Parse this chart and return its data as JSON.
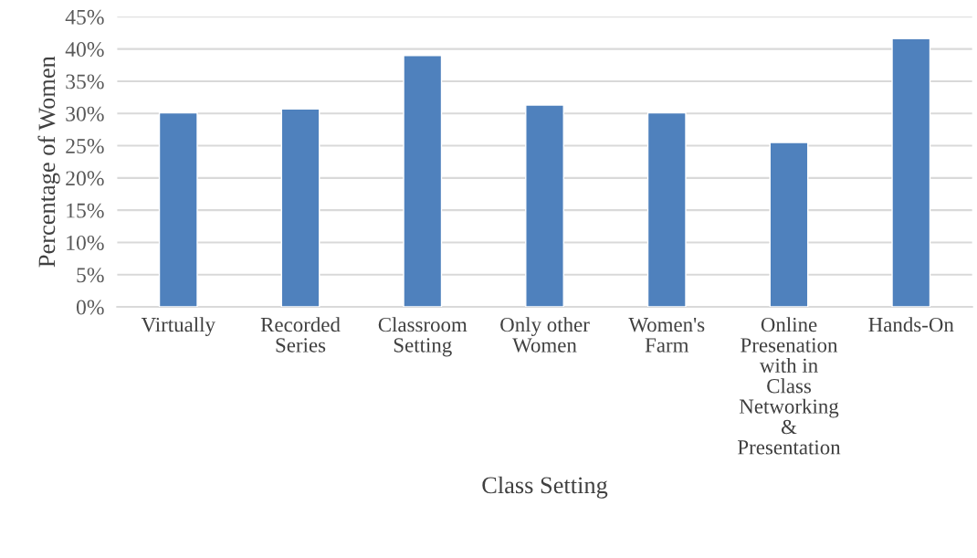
{
  "chart_data": {
    "type": "bar",
    "xlabel": "Class Setting",
    "ylabel": "Percentage of Women",
    "categories": [
      "Virtually",
      "Recorded Series",
      "Classroom Setting",
      "Only other Women",
      "Women's Farm",
      "Online Presenation with in Class Networking & Presentation",
      "Hands-On"
    ],
    "values": [
      30.1,
      30.7,
      39.0,
      31.3,
      30.1,
      25.5,
      41.6
    ],
    "color": "#4f81bd",
    "ylim": [
      0,
      45
    ],
    "yticks": [
      {
        "value": 0,
        "label": "0%"
      },
      {
        "value": 5,
        "label": "5%"
      },
      {
        "value": 10,
        "label": "10%"
      },
      {
        "value": 15,
        "label": "15%"
      },
      {
        "value": 20,
        "label": "20%"
      },
      {
        "value": 25,
        "label": "25%"
      },
      {
        "value": 30,
        "label": "30%"
      },
      {
        "value": 35,
        "label": "35%"
      },
      {
        "value": 40,
        "label": "40%"
      },
      {
        "value": 45,
        "label": "45%"
      }
    ],
    "grid": "y"
  }
}
